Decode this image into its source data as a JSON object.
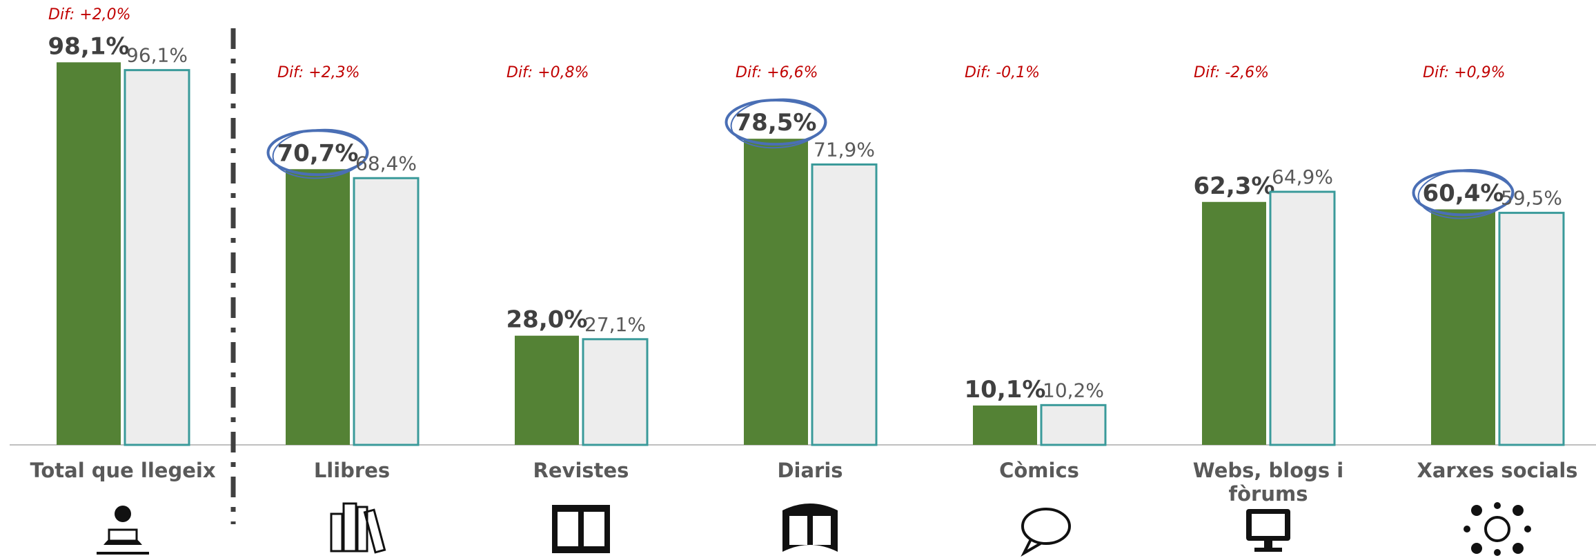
{
  "chart_data": {
    "type": "bar",
    "categories": [
      "Total que llegeix",
      "Llibres",
      "Revistes",
      "Diaris",
      "Còmics",
      "Webs, blogs i fòrums",
      "Xarxes socials"
    ],
    "series": [
      {
        "color": "#548235",
        "values": [
          98.1,
          70.7,
          28.0,
          78.5,
          10.1,
          62.3,
          60.4
        ],
        "value_labels": [
          "98,1%",
          "70,7%",
          "28,0%",
          "78,5%",
          "10,1%",
          "62,3%",
          "60,4%"
        ]
      },
      {
        "color": "#ededed",
        "stroke": "#3a9a9a",
        "values": [
          96.1,
          68.4,
          27.1,
          71.9,
          10.2,
          64.9,
          59.5
        ],
        "value_labels": [
          "96,1%",
          "68,4%",
          "27,1%",
          "71,9%",
          "10,2%",
          "64,9%",
          "59,5%"
        ]
      }
    ],
    "annotations": [
      "Dif: +2,0%",
      "Dif: +2,3%",
      "Dif: +0,8%",
      "Dif: +6,6%",
      "Dif: -0,1%",
      "Dif: -2,6%",
      "Dif: +0,9%"
    ],
    "highlighted": [
      1,
      3,
      6
    ]
  }
}
